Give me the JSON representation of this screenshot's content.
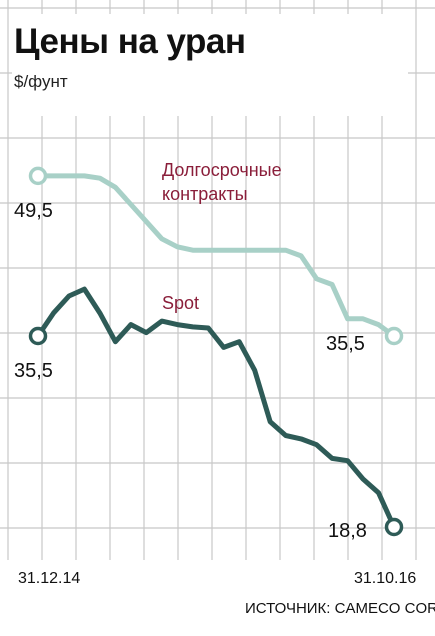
{
  "header": {
    "title": "Цены на уран",
    "unit": "$/фунт"
  },
  "colors": {
    "long_term": "#a8d0c7",
    "spot": "#2e5b57",
    "series_label": "#8a1e3a",
    "grid": "#c8c8c8"
  },
  "chart_data": {
    "type": "line",
    "title": "Цены на уран",
    "ylabel": "$/фунт",
    "x_range": [
      "31.12.14",
      "31.10.16"
    ],
    "x_tick_labels": [
      "31.12.14",
      "31.10.16"
    ],
    "ylim": [
      15,
      54
    ],
    "grid": true,
    "series": [
      {
        "name": "Долгосрочные контракты",
        "values": [
          49.5,
          49.5,
          49.5,
          49.5,
          49.3,
          48.5,
          47.0,
          45.5,
          44.0,
          43.3,
          43.0,
          43.0,
          43.0,
          43.0,
          43.0,
          43.0,
          43.0,
          42.5,
          40.5,
          40.0,
          37.0,
          37.0,
          36.5,
          35.5
        ],
        "start_label": "49,5",
        "end_label": "35,5"
      },
      {
        "name": "Spot",
        "values": [
          35.5,
          37.5,
          39.0,
          39.6,
          37.5,
          35.0,
          36.5,
          35.8,
          36.8,
          36.5,
          36.3,
          36.2,
          34.5,
          35.0,
          32.5,
          28.0,
          26.8,
          26.5,
          26.0,
          24.8,
          24.6,
          23.0,
          21.8,
          18.8
        ],
        "start_label": "35,5",
        "end_label": "18,8"
      }
    ]
  },
  "source": "ИСТОЧНИК: CAMECO CORP."
}
